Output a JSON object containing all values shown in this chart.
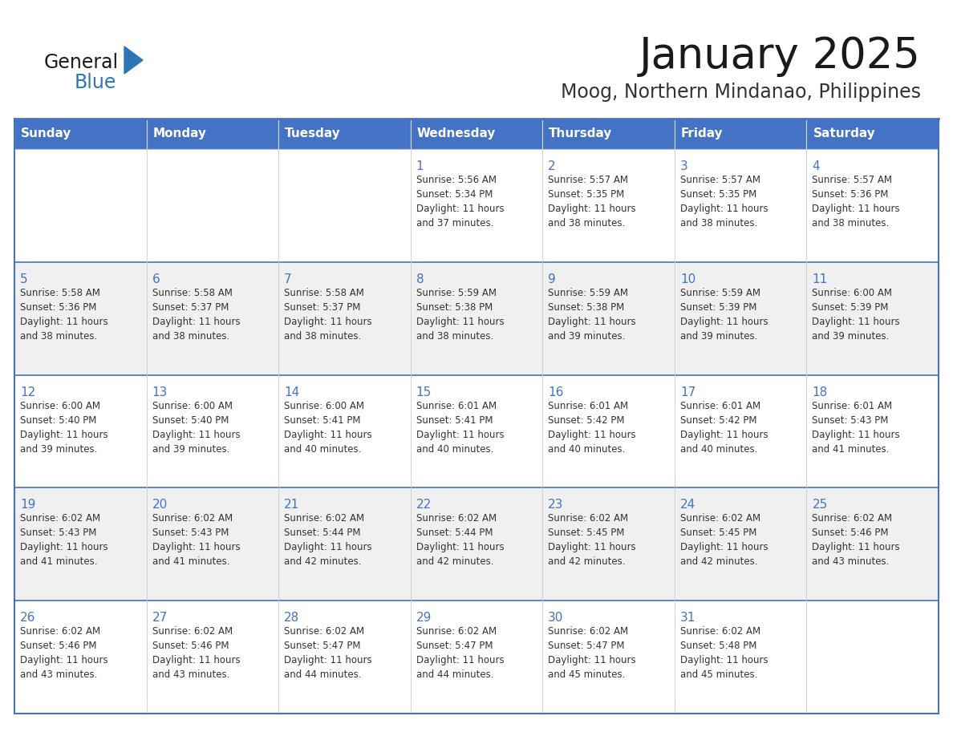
{
  "title": "January 2025",
  "subtitle": "Moog, Northern Mindanao, Philippines",
  "days_of_week": [
    "Sunday",
    "Monday",
    "Tuesday",
    "Wednesday",
    "Thursday",
    "Friday",
    "Saturday"
  ],
  "header_bg": "#4472C4",
  "header_text": "#FFFFFF",
  "title_color": "#1a1a1a",
  "subtitle_color": "#333333",
  "general_text_color": "#1a1a1a",
  "blue_color": "#2E75B6",
  "day_number_color": "#4472C4",
  "cell_text_color": "#333333",
  "row_bg_even": "#FFFFFF",
  "row_bg_odd": "#F0F0F0",
  "border_color_dark": "#4472C4",
  "border_color_light": "#BBBBBB",
  "calendar_data": [
    [
      {
        "day": "",
        "text": ""
      },
      {
        "day": "",
        "text": ""
      },
      {
        "day": "",
        "text": ""
      },
      {
        "day": "1",
        "text": "Sunrise: 5:56 AM\nSunset: 5:34 PM\nDaylight: 11 hours\nand 37 minutes."
      },
      {
        "day": "2",
        "text": "Sunrise: 5:57 AM\nSunset: 5:35 PM\nDaylight: 11 hours\nand 38 minutes."
      },
      {
        "day": "3",
        "text": "Sunrise: 5:57 AM\nSunset: 5:35 PM\nDaylight: 11 hours\nand 38 minutes."
      },
      {
        "day": "4",
        "text": "Sunrise: 5:57 AM\nSunset: 5:36 PM\nDaylight: 11 hours\nand 38 minutes."
      }
    ],
    [
      {
        "day": "5",
        "text": "Sunrise: 5:58 AM\nSunset: 5:36 PM\nDaylight: 11 hours\nand 38 minutes."
      },
      {
        "day": "6",
        "text": "Sunrise: 5:58 AM\nSunset: 5:37 PM\nDaylight: 11 hours\nand 38 minutes."
      },
      {
        "day": "7",
        "text": "Sunrise: 5:58 AM\nSunset: 5:37 PM\nDaylight: 11 hours\nand 38 minutes."
      },
      {
        "day": "8",
        "text": "Sunrise: 5:59 AM\nSunset: 5:38 PM\nDaylight: 11 hours\nand 38 minutes."
      },
      {
        "day": "9",
        "text": "Sunrise: 5:59 AM\nSunset: 5:38 PM\nDaylight: 11 hours\nand 39 minutes."
      },
      {
        "day": "10",
        "text": "Sunrise: 5:59 AM\nSunset: 5:39 PM\nDaylight: 11 hours\nand 39 minutes."
      },
      {
        "day": "11",
        "text": "Sunrise: 6:00 AM\nSunset: 5:39 PM\nDaylight: 11 hours\nand 39 minutes."
      }
    ],
    [
      {
        "day": "12",
        "text": "Sunrise: 6:00 AM\nSunset: 5:40 PM\nDaylight: 11 hours\nand 39 minutes."
      },
      {
        "day": "13",
        "text": "Sunrise: 6:00 AM\nSunset: 5:40 PM\nDaylight: 11 hours\nand 39 minutes."
      },
      {
        "day": "14",
        "text": "Sunrise: 6:00 AM\nSunset: 5:41 PM\nDaylight: 11 hours\nand 40 minutes."
      },
      {
        "day": "15",
        "text": "Sunrise: 6:01 AM\nSunset: 5:41 PM\nDaylight: 11 hours\nand 40 minutes."
      },
      {
        "day": "16",
        "text": "Sunrise: 6:01 AM\nSunset: 5:42 PM\nDaylight: 11 hours\nand 40 minutes."
      },
      {
        "day": "17",
        "text": "Sunrise: 6:01 AM\nSunset: 5:42 PM\nDaylight: 11 hours\nand 40 minutes."
      },
      {
        "day": "18",
        "text": "Sunrise: 6:01 AM\nSunset: 5:43 PM\nDaylight: 11 hours\nand 41 minutes."
      }
    ],
    [
      {
        "day": "19",
        "text": "Sunrise: 6:02 AM\nSunset: 5:43 PM\nDaylight: 11 hours\nand 41 minutes."
      },
      {
        "day": "20",
        "text": "Sunrise: 6:02 AM\nSunset: 5:43 PM\nDaylight: 11 hours\nand 41 minutes."
      },
      {
        "day": "21",
        "text": "Sunrise: 6:02 AM\nSunset: 5:44 PM\nDaylight: 11 hours\nand 42 minutes."
      },
      {
        "day": "22",
        "text": "Sunrise: 6:02 AM\nSunset: 5:44 PM\nDaylight: 11 hours\nand 42 minutes."
      },
      {
        "day": "23",
        "text": "Sunrise: 6:02 AM\nSunset: 5:45 PM\nDaylight: 11 hours\nand 42 minutes."
      },
      {
        "day": "24",
        "text": "Sunrise: 6:02 AM\nSunset: 5:45 PM\nDaylight: 11 hours\nand 42 minutes."
      },
      {
        "day": "25",
        "text": "Sunrise: 6:02 AM\nSunset: 5:46 PM\nDaylight: 11 hours\nand 43 minutes."
      }
    ],
    [
      {
        "day": "26",
        "text": "Sunrise: 6:02 AM\nSunset: 5:46 PM\nDaylight: 11 hours\nand 43 minutes."
      },
      {
        "day": "27",
        "text": "Sunrise: 6:02 AM\nSunset: 5:46 PM\nDaylight: 11 hours\nand 43 minutes."
      },
      {
        "day": "28",
        "text": "Sunrise: 6:02 AM\nSunset: 5:47 PM\nDaylight: 11 hours\nand 44 minutes."
      },
      {
        "day": "29",
        "text": "Sunrise: 6:02 AM\nSunset: 5:47 PM\nDaylight: 11 hours\nand 44 minutes."
      },
      {
        "day": "30",
        "text": "Sunrise: 6:02 AM\nSunset: 5:47 PM\nDaylight: 11 hours\nand 45 minutes."
      },
      {
        "day": "31",
        "text": "Sunrise: 6:02 AM\nSunset: 5:48 PM\nDaylight: 11 hours\nand 45 minutes."
      },
      {
        "day": "",
        "text": ""
      }
    ]
  ]
}
